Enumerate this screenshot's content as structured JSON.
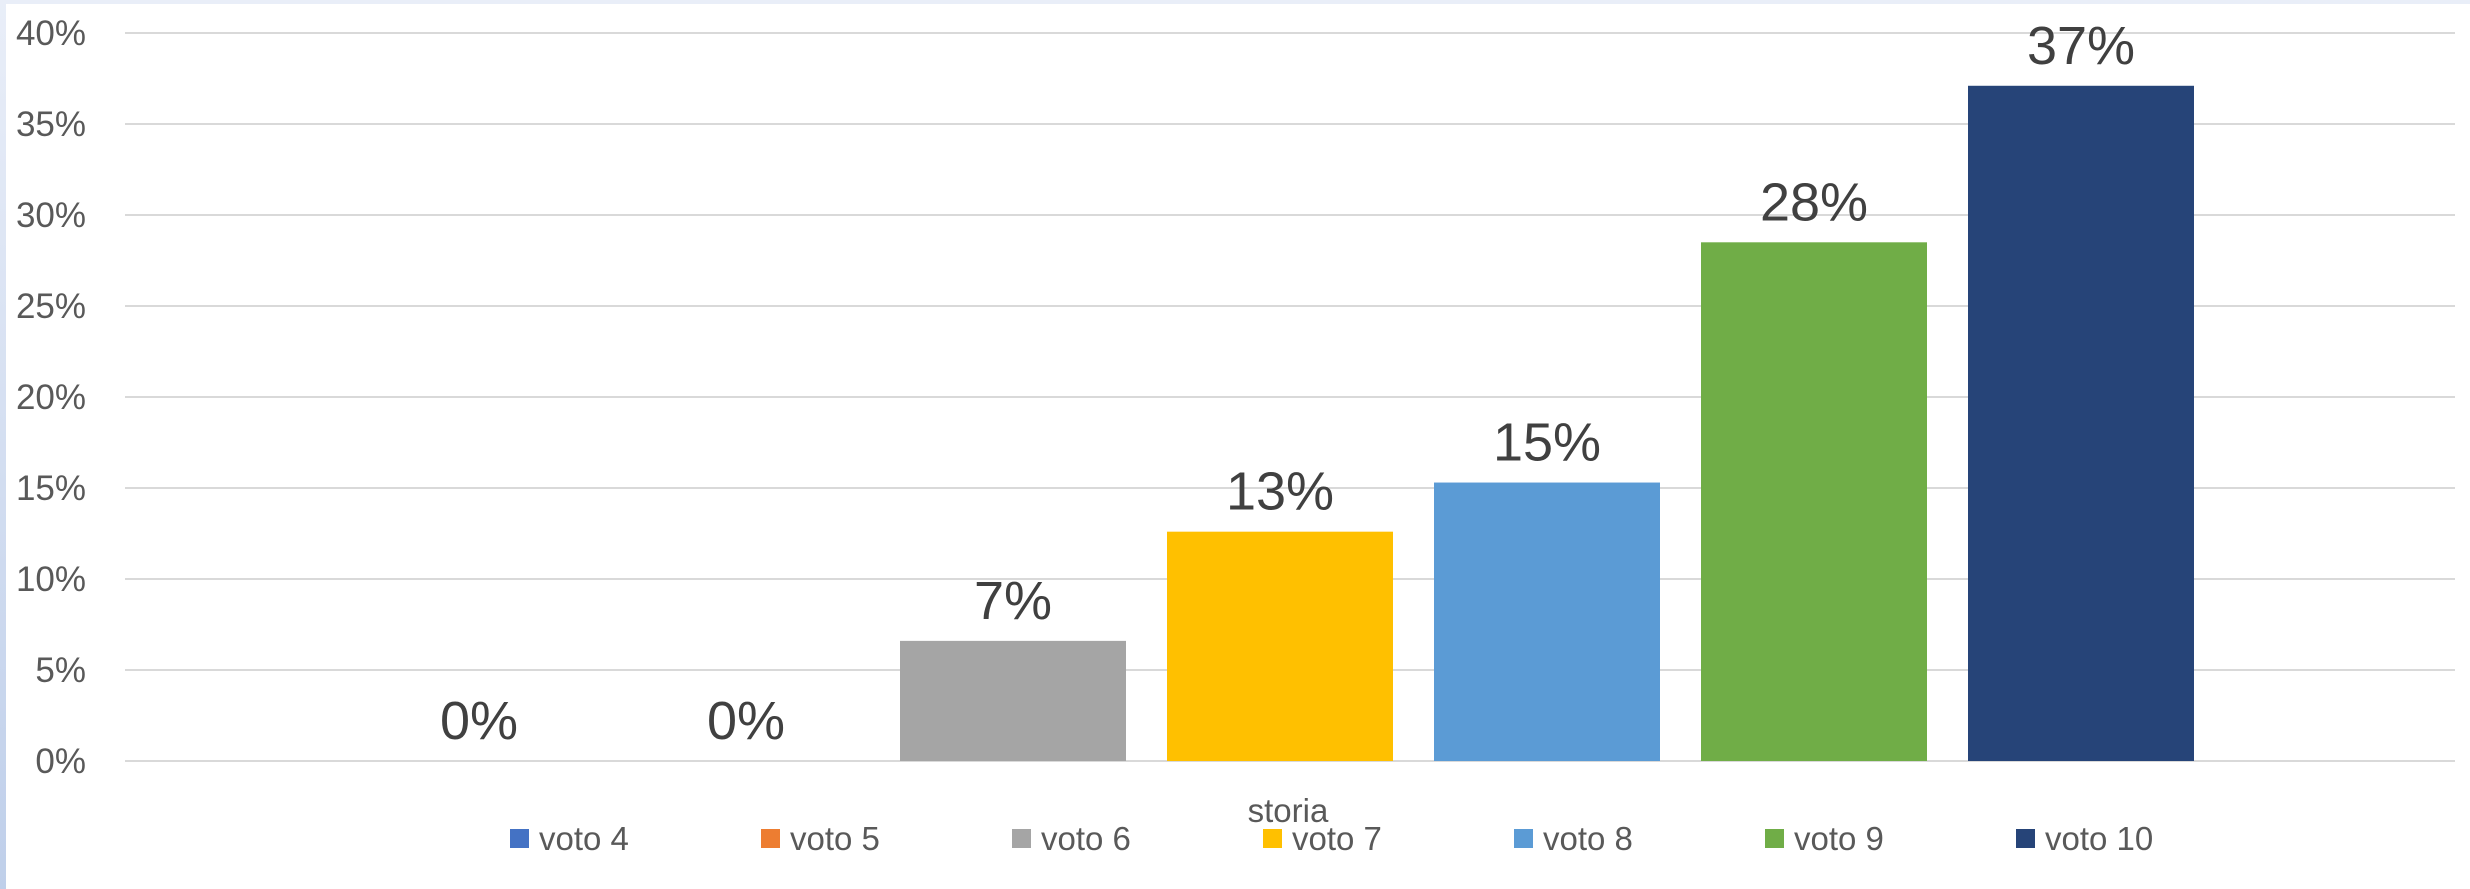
{
  "chart_data": {
    "type": "bar",
    "categories": [
      "storia"
    ],
    "series": [
      {
        "name": "voto 4",
        "values": [
          0
        ],
        "label": "0%",
        "color": "#4472C4"
      },
      {
        "name": "voto 5",
        "values": [
          0
        ],
        "label": "0%",
        "color": "#ED7D31"
      },
      {
        "name": "voto 6",
        "values": [
          6.6
        ],
        "label": "7%",
        "color": "#A5A5A5"
      },
      {
        "name": "voto 7",
        "values": [
          12.6
        ],
        "label": "13%",
        "color": "#FFC000"
      },
      {
        "name": "voto 8",
        "values": [
          15.3
        ],
        "label": "15%",
        "color": "#5B9BD5"
      },
      {
        "name": "voto 9",
        "values": [
          28.5
        ],
        "label": "28%",
        "color": "#70AD47"
      },
      {
        "name": "voto 10",
        "values": [
          37.1
        ],
        "label": "37%",
        "color": "#264478"
      }
    ],
    "yticks": [
      "0%",
      "5%",
      "10%",
      "15%",
      "20%",
      "25%",
      "30%",
      "35%",
      "40%"
    ],
    "ylim": [
      0,
      40
    ],
    "grid": true,
    "legend_position": "bottom"
  }
}
